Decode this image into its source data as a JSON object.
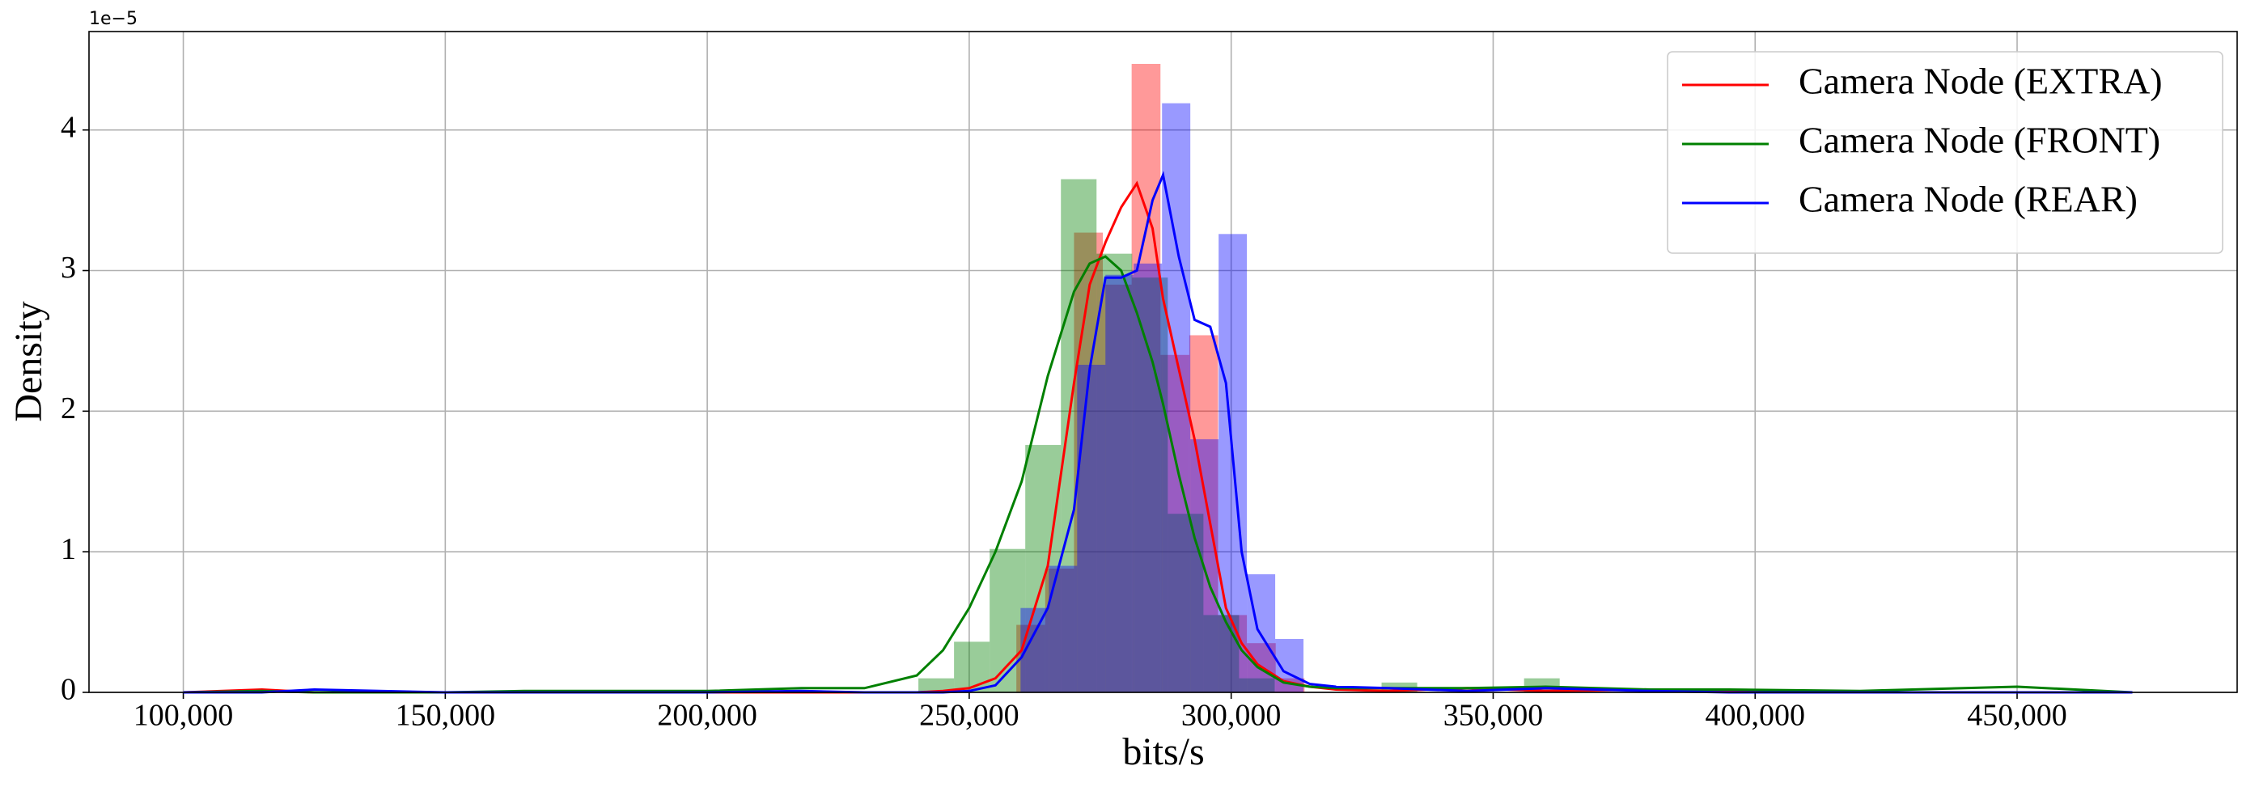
{
  "chart_data": {
    "type": "histogram",
    "xlabel": "bits/s",
    "ylabel": "Density",
    "y_offset_label": "1e−5",
    "xlim": [
      82000,
      492000
    ],
    "ylim": [
      0,
      4.7
    ],
    "xticks": [
      {
        "value": 100000,
        "label": "100,000"
      },
      {
        "value": 150000,
        "label": "150,000"
      },
      {
        "value": 200000,
        "label": "200,000"
      },
      {
        "value": 250000,
        "label": "250,000"
      },
      {
        "value": 300000,
        "label": "300,000"
      },
      {
        "value": 350000,
        "label": "350,000"
      },
      {
        "value": 400000,
        "label": "400,000"
      },
      {
        "value": 450000,
        "label": "450,000"
      }
    ],
    "yticks": [
      0,
      1,
      2,
      3,
      4
    ],
    "grid": true,
    "legend": "upper right",
    "kde_x": [
      100000,
      115000,
      125000,
      150000,
      165000,
      200000,
      218000,
      230000,
      240000,
      245000,
      250000,
      255000,
      260000,
      265000,
      270000,
      273000,
      276000,
      279000,
      282000,
      285000,
      287000,
      290000,
      293000,
      296000,
      299000,
      302000,
      305000,
      310000,
      315000,
      320000,
      330000,
      345000,
      360000,
      380000,
      395000,
      420000,
      450000,
      472000
    ],
    "series": [
      {
        "name": "Camera Node (EXTRA)",
        "color": "#ff0000",
        "bins": [
          259000,
          264500,
          270000,
          275500,
          281000,
          286500,
          292000,
          297500,
          303000,
          308500,
          314000
        ],
        "values": [
          0.48,
          0.88,
          3.27,
          2.9,
          4.47,
          2.4,
          2.54,
          0.55,
          0.35,
          0.1
        ],
        "kde_values": [
          0,
          0.02,
          0,
          0,
          0,
          0,
          0,
          0,
          0,
          0.01,
          0.03,
          0.1,
          0.3,
          0.9,
          2.2,
          2.9,
          3.2,
          3.45,
          3.62,
          3.3,
          2.8,
          2.3,
          1.8,
          1.2,
          0.6,
          0.35,
          0.2,
          0.08,
          0.04,
          0.02,
          0.01,
          0.03,
          0.01,
          0.02,
          0.01,
          0,
          0,
          0
        ]
      },
      {
        "name": "Camera Node (FRONT)",
        "color": "#008000",
        "bins": [
          240300,
          247100,
          253900,
          260700,
          267500,
          274300,
          281100,
          287900,
          294700,
          301500,
          308300,
          315100,
          321900,
          328700,
          335500,
          342300,
          349100,
          355900,
          362700
        ],
        "values": [
          0.1,
          0.36,
          1.02,
          1.76,
          3.65,
          3.12,
          2.95,
          1.27,
          0.55,
          0.1,
          0,
          0,
          0,
          0.07,
          0,
          0,
          0,
          0.1
        ],
        "kde_values": [
          0,
          0.01,
          0,
          0,
          0.01,
          0.01,
          0.03,
          0.03,
          0.12,
          0.3,
          0.6,
          1.0,
          1.5,
          2.25,
          2.85,
          3.05,
          3.1,
          3.0,
          2.7,
          2.35,
          2.05,
          1.55,
          1.1,
          0.75,
          0.5,
          0.3,
          0.18,
          0.07,
          0.04,
          0.03,
          0.03,
          0.03,
          0.04,
          0.02,
          0.02,
          0.01,
          0.04,
          0
        ]
      },
      {
        "name": "Camera Node (REAR)",
        "color": "#0000ff",
        "bins": [
          259800,
          265200,
          270600,
          276000,
          281400,
          286800,
          292200,
          297600,
          303000,
          308400,
          313800
        ],
        "values": [
          0.6,
          0.9,
          2.33,
          2.97,
          3.05,
          4.19,
          1.8,
          3.26,
          0.84,
          0.38
        ],
        "kde_values": [
          0,
          0,
          0.02,
          0,
          0,
          0,
          0.01,
          0,
          0,
          0,
          0.01,
          0.05,
          0.25,
          0.6,
          1.3,
          2.3,
          2.95,
          2.95,
          3.0,
          3.5,
          3.68,
          3.1,
          2.65,
          2.6,
          2.2,
          1.0,
          0.45,
          0.15,
          0.06,
          0.04,
          0.03,
          0.01,
          0.03,
          0.01,
          0,
          0,
          0,
          0
        ]
      }
    ]
  }
}
